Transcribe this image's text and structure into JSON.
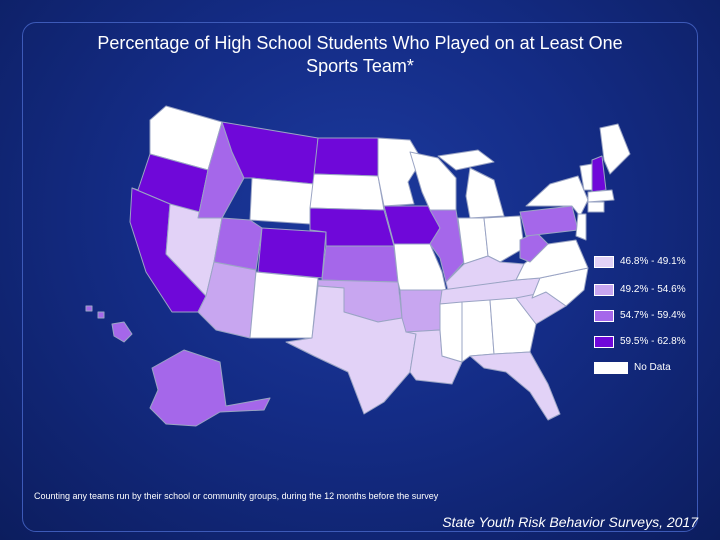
{
  "title": {
    "line1": "Percentage of High School Students Who Played on at Least One",
    "line2": "Sports Team*"
  },
  "legend": [
    {
      "label": "46.8% - 49.1%",
      "color": "#e2d2f7"
    },
    {
      "label": "49.2% - 54.6%",
      "color": "#c8a6f0"
    },
    {
      "label": "54.7% - 59.4%",
      "color": "#a567ea"
    },
    {
      "label": "59.5% - 62.8%",
      "color": "#6f08d9"
    },
    {
      "label": "No Data",
      "color": "#ffffff"
    }
  ],
  "footnote": "Counting any teams run by their school or community groups, during the 12 months before the survey",
  "source": "State Youth Risk Behavior Surveys, 2017",
  "colors": {
    "background": "#142c86",
    "border": "#3d5ab8",
    "state_outline": "#9aa4c4"
  },
  "map_classes": {
    "Washington": "No Data",
    "Oregon": "59.5% - 62.8%",
    "California": "59.5% - 62.8%",
    "Idaho": "54.7% - 59.4%",
    "Nevada": "46.8% - 49.1%",
    "Montana": "59.5% - 62.8%",
    "Wyoming": "No Data",
    "Utah": "54.7% - 59.4%",
    "Arizona": "49.2% - 54.6%",
    "Colorado": "59.5% - 62.8%",
    "New Mexico": "No Data",
    "North Dakota": "59.5% - 62.8%",
    "South Dakota": "No Data",
    "Nebraska": "59.5% - 62.8%",
    "Kansas": "54.7% - 59.4%",
    "Oklahoma": "49.2% - 54.6%",
    "Texas": "46.8% - 49.1%",
    "Minnesota": "No Data",
    "Iowa": "59.5% - 62.8%",
    "Missouri": "No Data",
    "Arkansas": "49.2% - 54.6%",
    "Louisiana": "46.8% - 49.1%",
    "Wisconsin": "No Data",
    "Illinois": "54.7% - 59.4%",
    "Michigan": "No Data",
    "Indiana": "No Data",
    "Ohio": "No Data",
    "Kentucky": "46.8% - 49.1%",
    "Tennessee": "46.8% - 49.1%",
    "Mississippi": "No Data",
    "Alabama": "No Data",
    "Georgia": "No Data",
    "Florida": "46.8% - 49.1%",
    "South Carolina": "46.8% - 49.1%",
    "North Carolina": "No Data",
    "Virginia": "No Data",
    "West Virginia": "54.7% - 59.4%",
    "Pennsylvania": "54.7% - 59.4%",
    "New York": "No Data",
    "Vermont": "No Data",
    "New Hampshire": "59.5% - 62.8%",
    "Maine": "No Data",
    "Alaska": "54.7% - 59.4%",
    "Hawaii": "54.7% - 59.4%"
  }
}
